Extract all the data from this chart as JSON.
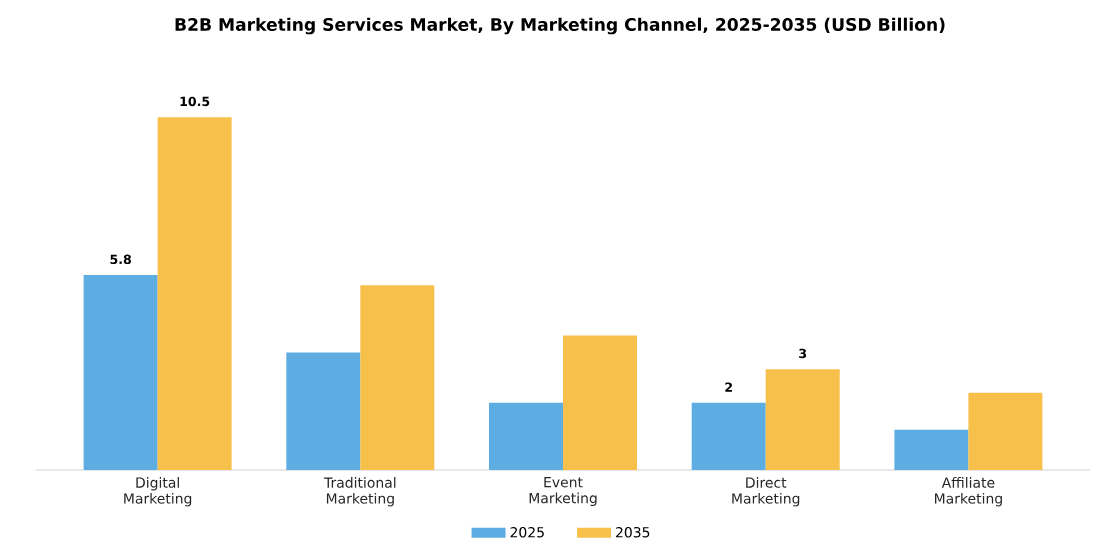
{
  "chart_data": {
    "type": "bar",
    "title": "B2B Marketing Services Market, By Marketing Channel, 2025-2035 (USD Billion)",
    "categories": [
      "Digital Marketing",
      "Traditional Marketing",
      "Event Marketing",
      "Direct Marketing",
      "Affiliate Marketing"
    ],
    "series": [
      {
        "name": "2025",
        "color": "#5dade2",
        "values": [
          5.8,
          3.5,
          2.0,
          2,
          1.2
        ],
        "value_labels": [
          "5.8",
          null,
          null,
          "2",
          null
        ]
      },
      {
        "name": "2035",
        "color": "#f7c04a",
        "values": [
          10.5,
          5.5,
          4.0,
          3,
          2.3
        ],
        "value_labels": [
          "10.5",
          null,
          null,
          "3",
          null
        ]
      }
    ],
    "legend": "bottom"
  }
}
